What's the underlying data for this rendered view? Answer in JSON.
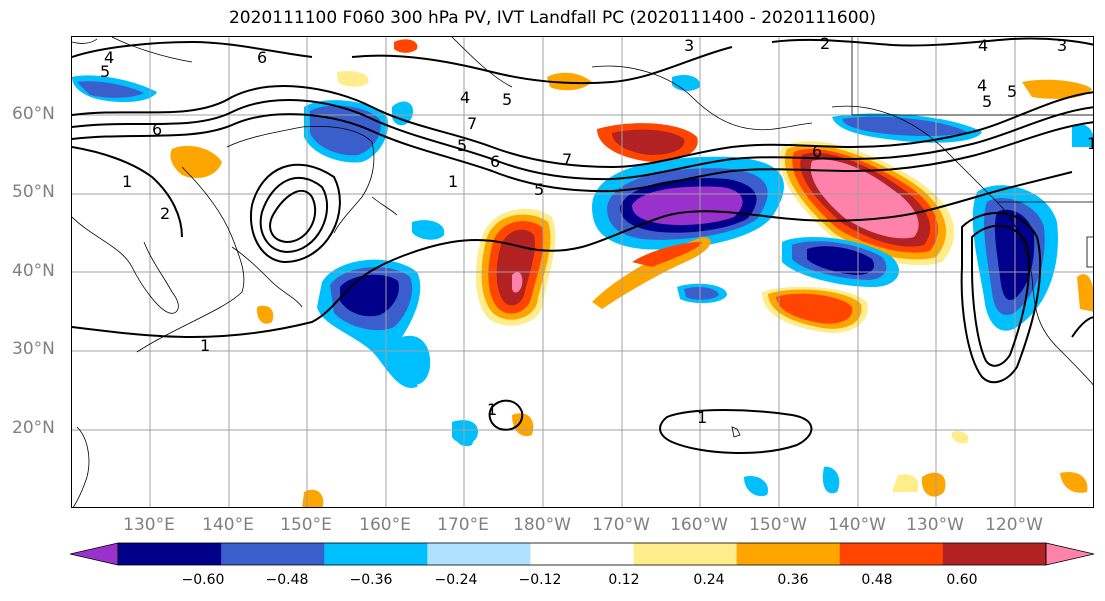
{
  "title": "2020111100 F060 300 hPa PV, IVT Landfall PC (2020111400 - 2020111600)",
  "lat_labels": [
    "60°N",
    "50°N",
    "40°N",
    "30°N",
    "20°N"
  ],
  "lon_labels": [
    "130°E",
    "140°E",
    "150°E",
    "160°E",
    "170°E",
    "180°W",
    "170°W",
    "160°W",
    "150°W",
    "140°W",
    "130°W",
    "120°W"
  ],
  "contour_labels": [
    "4",
    "5",
    "6",
    "6",
    "1",
    "2",
    "3",
    "4",
    "5",
    "6",
    "7",
    "5",
    "4",
    "1",
    "5",
    "7",
    "1",
    "1",
    "1",
    "3",
    "2",
    "4",
    "5",
    "5",
    "6",
    "1"
  ],
  "colorbar": {
    "ticks": [
      "−0.60",
      "−0.48",
      "−0.36",
      "−0.24",
      "−0.12",
      "0.12",
      "0.24",
      "0.36",
      "0.48",
      "0.60"
    ],
    "colors": [
      "#9932cc",
      "#00008b",
      "#3a5fcd",
      "#00bfff",
      "#b0e2ff",
      "#ffffff",
      "#ffec8b",
      "#ffa500",
      "#ff4500",
      "#b22222",
      "#ff82ab"
    ]
  }
}
